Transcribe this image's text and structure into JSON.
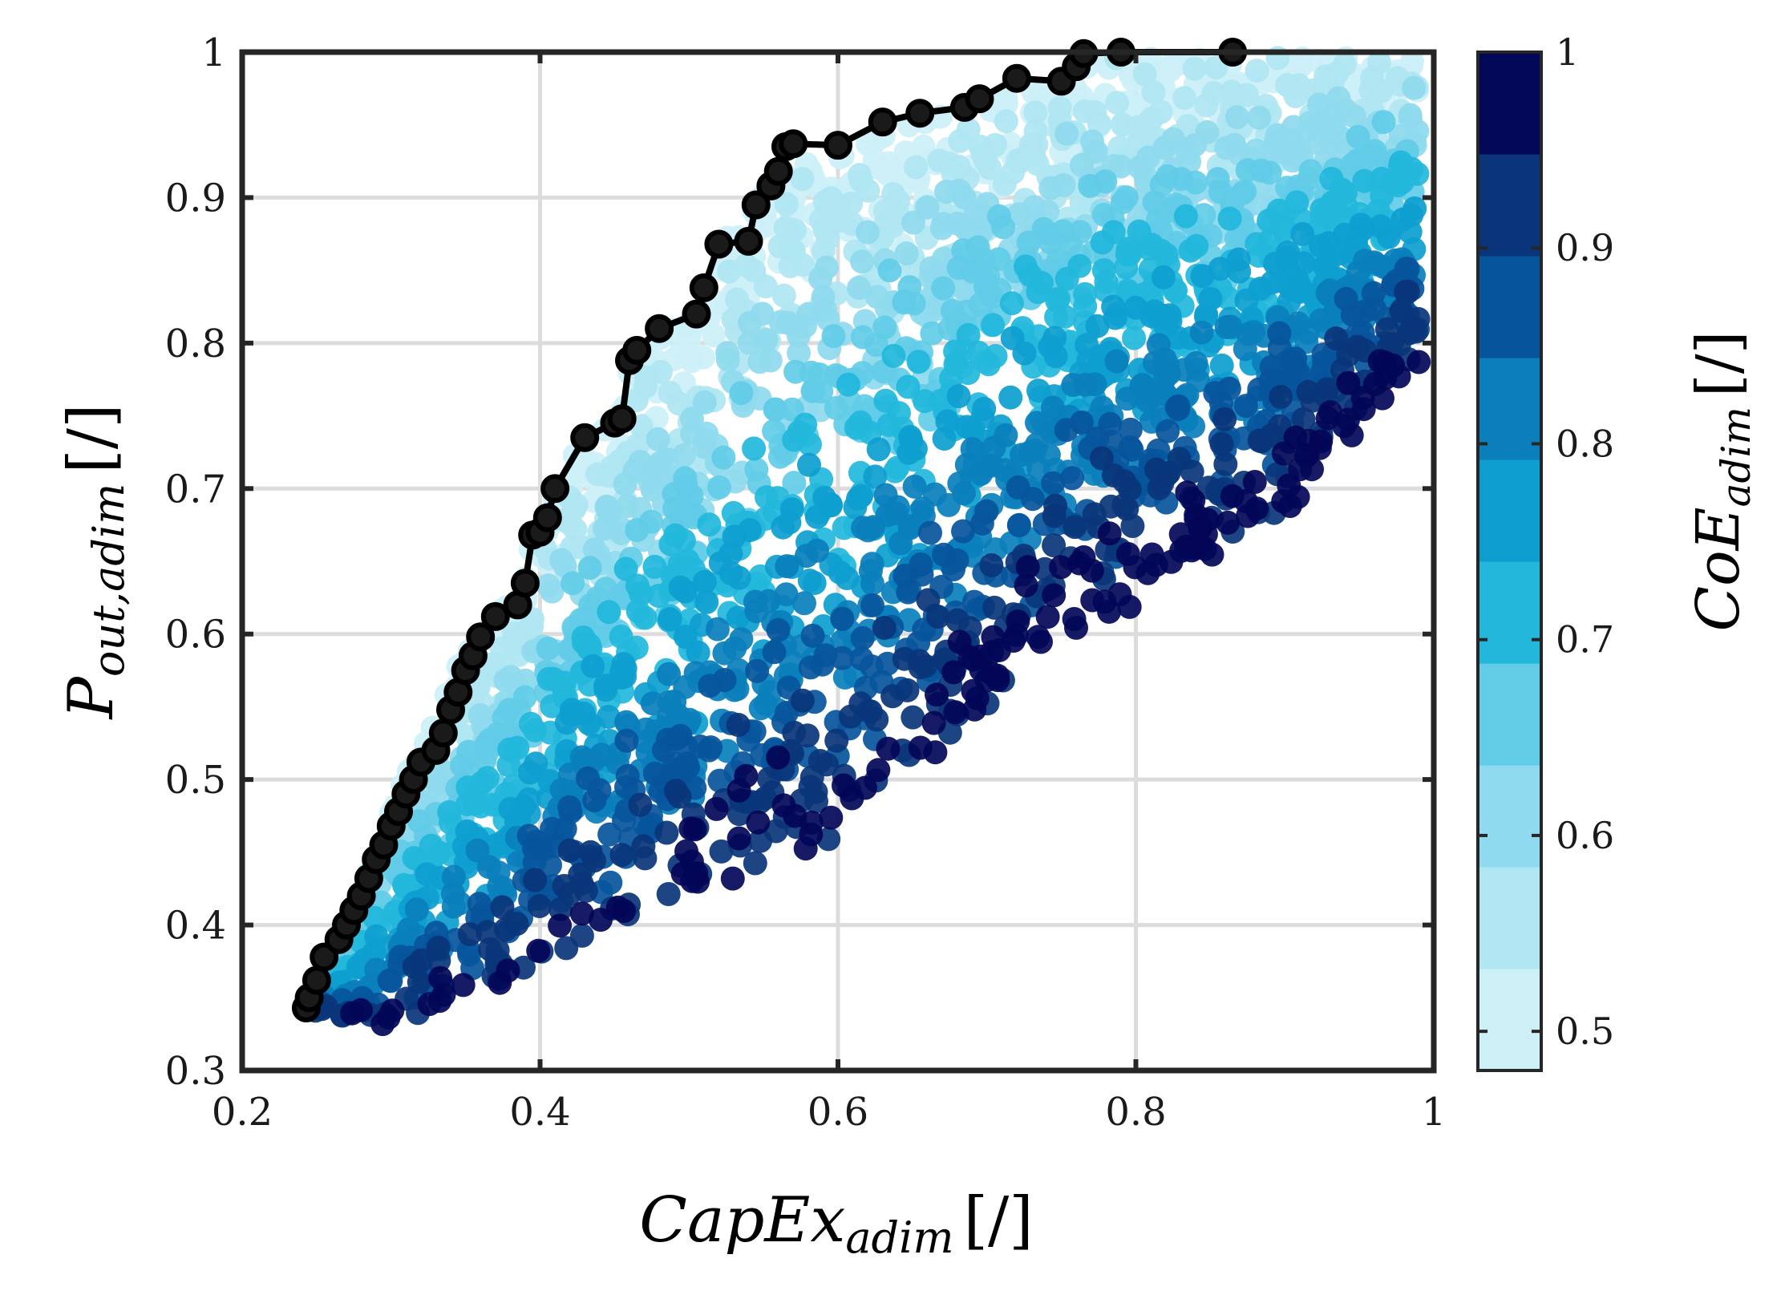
{
  "chart_data": {
    "type": "scatter",
    "title": "",
    "xlabel": {
      "main": "CapEx",
      "sub": "adim",
      "unit": "[/]"
    },
    "ylabel": {
      "main": "P",
      "sub": "out,adim",
      "unit": "[/]"
    },
    "colorbar_label": {
      "main": "CoE",
      "sub": "adim",
      "unit": "[/]"
    },
    "xlim": [
      0.2,
      1.0
    ],
    "ylim": [
      0.3,
      1.0
    ],
    "xticks": [
      "0.2",
      "0.4",
      "0.6",
      "0.8",
      "1"
    ],
    "yticks": [
      "0.3",
      "0.4",
      "0.5",
      "0.6",
      "0.7",
      "0.8",
      "0.9",
      "1"
    ],
    "grid": true,
    "colorbar": {
      "clim": [
        0.48,
        1.0
      ],
      "ticks": [
        "0.5",
        "0.6",
        "0.7",
        "0.8",
        "0.9",
        "1"
      ],
      "colors": [
        "#cdf0f7",
        "#afe6f2",
        "#8fdaee",
        "#62cce7",
        "#22b7db",
        "#0d9ecf",
        "#0a7fbc",
        "#06559c",
        "#0a357a",
        "#030757"
      ]
    },
    "cloud": {
      "description_ranges_only": false,
      "upper_bound": {
        "x": [
          0.243,
          0.25,
          0.255,
          0.27,
          0.28,
          0.29,
          0.3,
          0.31,
          0.32,
          0.33,
          0.34,
          0.35,
          0.36,
          0.37,
          0.385,
          0.395,
          0.4,
          0.41,
          0.43,
          0.45,
          0.46,
          0.48,
          0.51,
          0.52,
          0.545,
          0.56,
          0.57,
          0.6,
          0.63,
          0.65,
          0.69,
          0.72,
          0.76,
          0.77,
          0.79,
          0.865
        ],
        "y": [
          0.343,
          0.36,
          0.378,
          0.4,
          0.43,
          0.46,
          0.49,
          0.51,
          0.53,
          0.55,
          0.575,
          0.6,
          0.61,
          0.62,
          0.635,
          0.67,
          0.68,
          0.715,
          0.735,
          0.75,
          0.79,
          0.81,
          0.82,
          0.87,
          0.9,
          0.92,
          0.935,
          0.935,
          0.95,
          0.955,
          0.965,
          0.98,
          0.985,
          0.999,
          1.0,
          1.0
        ]
      },
      "lower_bound": {
        "x": [
          0.243,
          0.3,
          0.34,
          0.38,
          0.42,
          0.46,
          0.5,
          0.55,
          0.6,
          0.65,
          0.7,
          0.75,
          0.8,
          0.85,
          0.9,
          0.95,
          0.99
        ],
        "y": [
          0.34,
          0.33,
          0.34,
          0.36,
          0.38,
          0.4,
          0.42,
          0.44,
          0.46,
          0.5,
          0.55,
          0.6,
          0.62,
          0.65,
          0.68,
          0.74,
          0.78
        ]
      },
      "point_count": 3000
    },
    "pareto_front": {
      "x": [
        0.243,
        0.245,
        0.25,
        0.255,
        0.265,
        0.27,
        0.275,
        0.28,
        0.285,
        0.29,
        0.295,
        0.3,
        0.305,
        0.31,
        0.315,
        0.32,
        0.33,
        0.335,
        0.34,
        0.345,
        0.35,
        0.355,
        0.36,
        0.37,
        0.385,
        0.39,
        0.395,
        0.4,
        0.405,
        0.41,
        0.43,
        0.45,
        0.455,
        0.46,
        0.465,
        0.48,
        0.505,
        0.51,
        0.52,
        0.54,
        0.545,
        0.555,
        0.56,
        0.565,
        0.57,
        0.6,
        0.63,
        0.655,
        0.685,
        0.695,
        0.72,
        0.75,
        0.76,
        0.765,
        0.79,
        0.865
      ],
      "y": [
        0.343,
        0.35,
        0.362,
        0.378,
        0.39,
        0.4,
        0.41,
        0.42,
        0.432,
        0.445,
        0.455,
        0.468,
        0.478,
        0.49,
        0.5,
        0.512,
        0.52,
        0.532,
        0.548,
        0.56,
        0.575,
        0.585,
        0.598,
        0.612,
        0.62,
        0.635,
        0.668,
        0.67,
        0.68,
        0.7,
        0.735,
        0.745,
        0.748,
        0.788,
        0.795,
        0.81,
        0.82,
        0.838,
        0.868,
        0.87,
        0.895,
        0.908,
        0.918,
        0.935,
        0.937,
        0.936,
        0.952,
        0.958,
        0.962,
        0.968,
        0.982,
        0.98,
        0.99,
        0.999,
        1.0,
        1.0
      ]
    }
  }
}
